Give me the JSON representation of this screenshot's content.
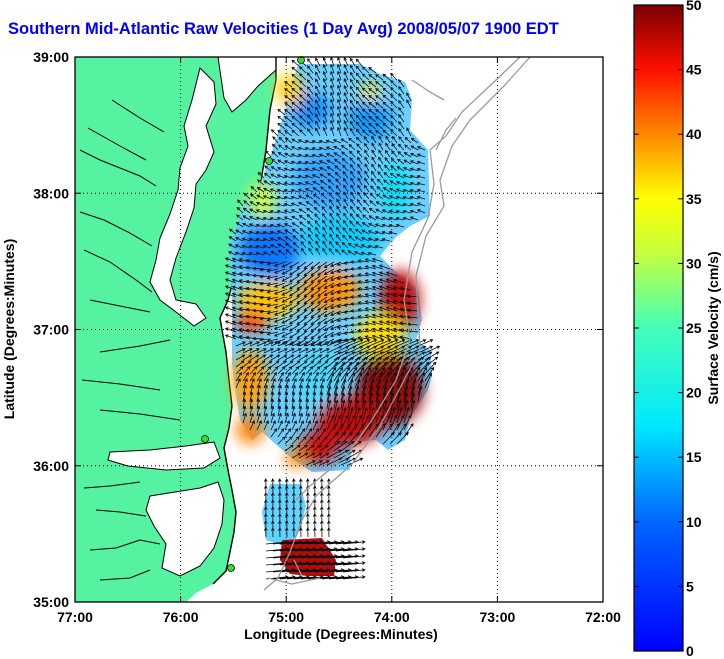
{
  "title": "Southern Mid-Atlantic Raw Velocities (1 Day Avg) 2008/05/07 1900 EDT",
  "map": {
    "xlabel": "Longitude (Degrees:Minutes)",
    "ylabel": "Latitude (Degrees:Minutes)",
    "x_ticks": [
      "77:00",
      "76:00",
      "75:00",
      "74:00",
      "73:00",
      "72:00"
    ],
    "y_ticks": [
      "39:00",
      "38:00",
      "37:00",
      "36:00",
      "35:00"
    ],
    "lon_range": [
      -77,
      -72
    ],
    "lat_range": [
      35,
      39
    ],
    "grid": "dotted",
    "land_color": "#55f2a2",
    "coast_color": "#000000",
    "bathymetry_color": "#9a9a9a",
    "station_color": "#33dd33"
  },
  "colorbar": {
    "label": "Surface Velocity (cm/s)",
    "ticks": [
      "0",
      "5",
      "10",
      "15",
      "20",
      "25",
      "30",
      "35",
      "40",
      "45",
      "50"
    ],
    "range": [
      0,
      50
    ],
    "colormap": "jet"
  }
}
